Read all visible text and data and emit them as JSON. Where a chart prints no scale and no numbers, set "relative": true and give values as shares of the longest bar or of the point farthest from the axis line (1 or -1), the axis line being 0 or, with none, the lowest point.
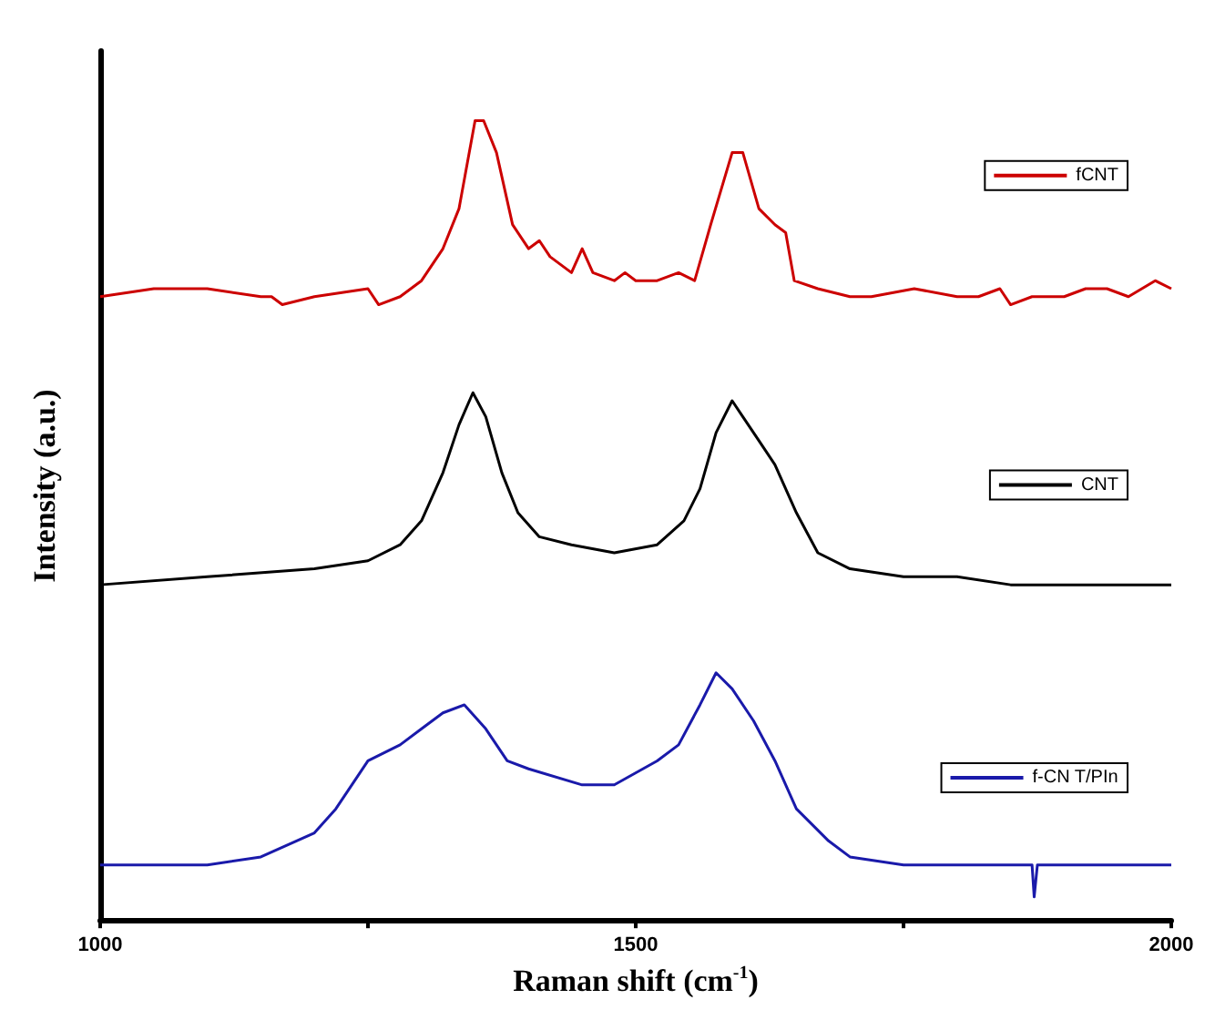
{
  "chart_data": {
    "type": "line",
    "relative": true,
    "xlabel": "Raman shift (cm$^{-1}$)",
    "ylabel": "Intensity (a.u.)",
    "xlim": [
      1000,
      2000
    ],
    "xticks": [
      1000,
      {
        "value": 1250,
        "label": null
      },
      1500,
      {
        "value": 1750,
        "label": null
      },
      2000
    ],
    "legend": "right",
    "grid": false,
    "marker": "none",
    "line_style": "solid",
    "series": [
      {
        "name": "fCNT",
        "color": "#cc0000",
        "x": [
          1000,
          1050,
          1100,
          1150,
          1160,
          1170,
          1200,
          1250,
          1260,
          1280,
          1300,
          1320,
          1335,
          1350,
          1358,
          1370,
          1385,
          1400,
          1410,
          1420,
          1440,
          1450,
          1460,
          1480,
          1490,
          1500,
          1520,
          1540,
          1555,
          1570,
          1590,
          1600,
          1615,
          1630,
          1640,
          1648,
          1670,
          1700,
          1720,
          1760,
          1800,
          1820,
          1840,
          1850,
          1870,
          1900,
          1920,
          1940,
          1960,
          1985,
          2000
        ],
        "values": [
          0.78,
          0.79,
          0.79,
          0.78,
          0.78,
          0.77,
          0.78,
          0.79,
          0.77,
          0.78,
          0.8,
          0.84,
          0.89,
          1.0,
          1,
          0.96,
          0.87,
          0.84,
          0.85,
          0.83,
          0.81,
          0.84,
          0.81,
          0.8,
          0.81,
          0.8,
          0.8,
          0.81,
          0.8,
          0.87,
          0.96,
          0.96,
          0.89,
          0.87,
          0.86,
          0.8,
          0.79,
          0.78,
          0.78,
          0.79,
          0.78,
          0.78,
          0.79,
          0.77,
          0.78,
          0.78,
          0.79,
          0.79,
          0.78,
          0.8,
          0.79
        ]
      },
      {
        "name": "CNT",
        "color": "#000000",
        "x": [
          1000,
          1100,
          1200,
          1250,
          1280,
          1300,
          1320,
          1335,
          1348,
          1360,
          1375,
          1390,
          1410,
          1440,
          1480,
          1520,
          1545,
          1560,
          1575,
          1590,
          1600,
          1615,
          1630,
          1650,
          1670,
          1700,
          1750,
          1800,
          1850,
          1900,
          1950,
          2000
        ],
        "values": [
          0.42,
          0.43,
          0.44,
          0.45,
          0.47,
          0.5,
          0.56,
          0.62,
          0.66,
          0.63,
          0.56,
          0.51,
          0.48,
          0.47,
          0.46,
          0.47,
          0.5,
          0.54,
          0.61,
          0.65,
          0.63,
          0.6,
          0.57,
          0.51,
          0.46,
          0.44,
          0.43,
          0.43,
          0.42,
          0.42,
          0.42,
          0.42
        ]
      },
      {
        "name": "f-CN T/PIn",
        "color": "#1a1aaa",
        "x": [
          1000,
          1100,
          1150,
          1200,
          1220,
          1250,
          1280,
          1300,
          1320,
          1340,
          1360,
          1380,
          1400,
          1450,
          1480,
          1520,
          1540,
          1560,
          1575,
          1590,
          1610,
          1630,
          1650,
          1680,
          1700,
          1750,
          1800,
          1850,
          1870,
          1872,
          1875,
          1900,
          1950,
          2000
        ],
        "values": [
          0.07,
          0.07,
          0.08,
          0.11,
          0.14,
          0.2,
          0.22,
          0.24,
          0.26,
          0.27,
          0.24,
          0.2,
          0.19,
          0.17,
          0.17,
          0.2,
          0.22,
          0.27,
          0.31,
          0.29,
          0.25,
          0.2,
          0.14,
          0.1,
          0.08,
          0.07,
          0.07,
          0.07,
          0.07,
          0.03,
          0.07,
          0.07,
          0.07,
          0.07
        ]
      }
    ]
  }
}
